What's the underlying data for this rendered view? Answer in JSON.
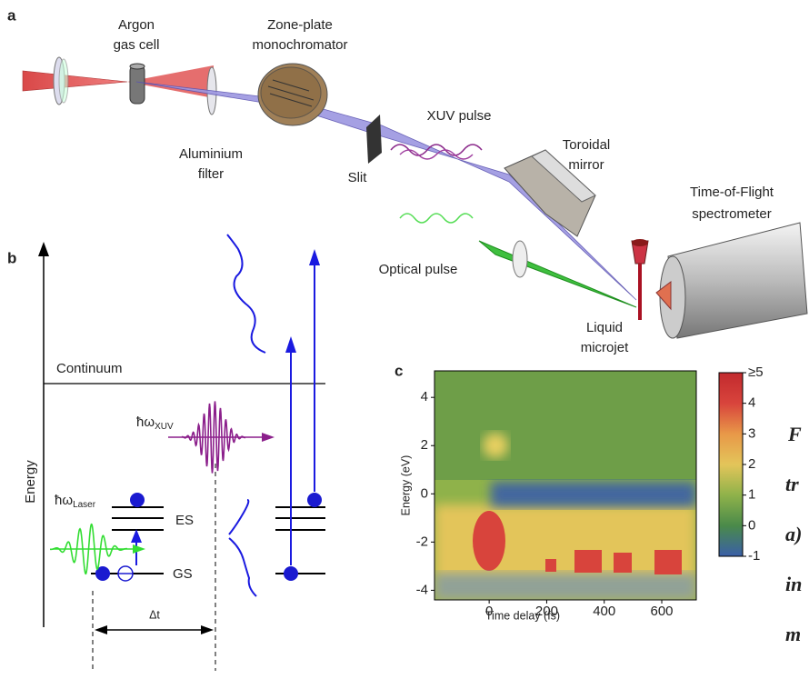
{
  "panel_labels": [
    "a",
    "b",
    "c"
  ],
  "panel_a": {
    "argon": [
      "Argon",
      "gas cell"
    ],
    "zone_plate": [
      "Zone-plate",
      "monochromator"
    ],
    "filter": [
      "Aluminium",
      "filter"
    ],
    "slit": "Slit",
    "xuv_pulse": "XUV pulse",
    "mirror": [
      "Toroidal",
      "mirror"
    ],
    "tof": [
      "Time-of-Flight",
      "spectrometer"
    ],
    "optical": "Optical pulse",
    "jet": [
      "Liquid",
      "microjet"
    ]
  },
  "panel_b": {
    "y_axis": "Energy",
    "continuum": "Continuum",
    "xuv_symbol": "ħω",
    "xuv_sub": "XUV",
    "laser_symbol": "ħω",
    "laser_sub": "Laser",
    "es": "ES",
    "gs": "GS",
    "delay": "Δt"
  },
  "chart_data": {
    "type": "heatmap",
    "x_label": "Time delay (fs)",
    "y_label": "Energy (eV)",
    "xlim": [
      -190,
      720
    ],
    "xticks": [
      0,
      200,
      400,
      600
    ],
    "ylim": [
      -4.4,
      5.1
    ],
    "yticks": [
      -4,
      -2,
      0,
      2,
      4
    ],
    "clim": [
      -1,
      5
    ],
    "cticks": [
      -1,
      0,
      1,
      2,
      3,
      4,
      {
        "value": 5,
        "label": "≥5"
      }
    ],
    "colormap": [
      "#3a5fa8",
      "#4a8a4a",
      "#8fb24a",
      "#e3c55a",
      "#e89848",
      "#d8443c",
      "#c22a2e"
    ]
  },
  "side_text": [
    "F",
    "tr",
    "a)",
    "in",
    "m"
  ]
}
